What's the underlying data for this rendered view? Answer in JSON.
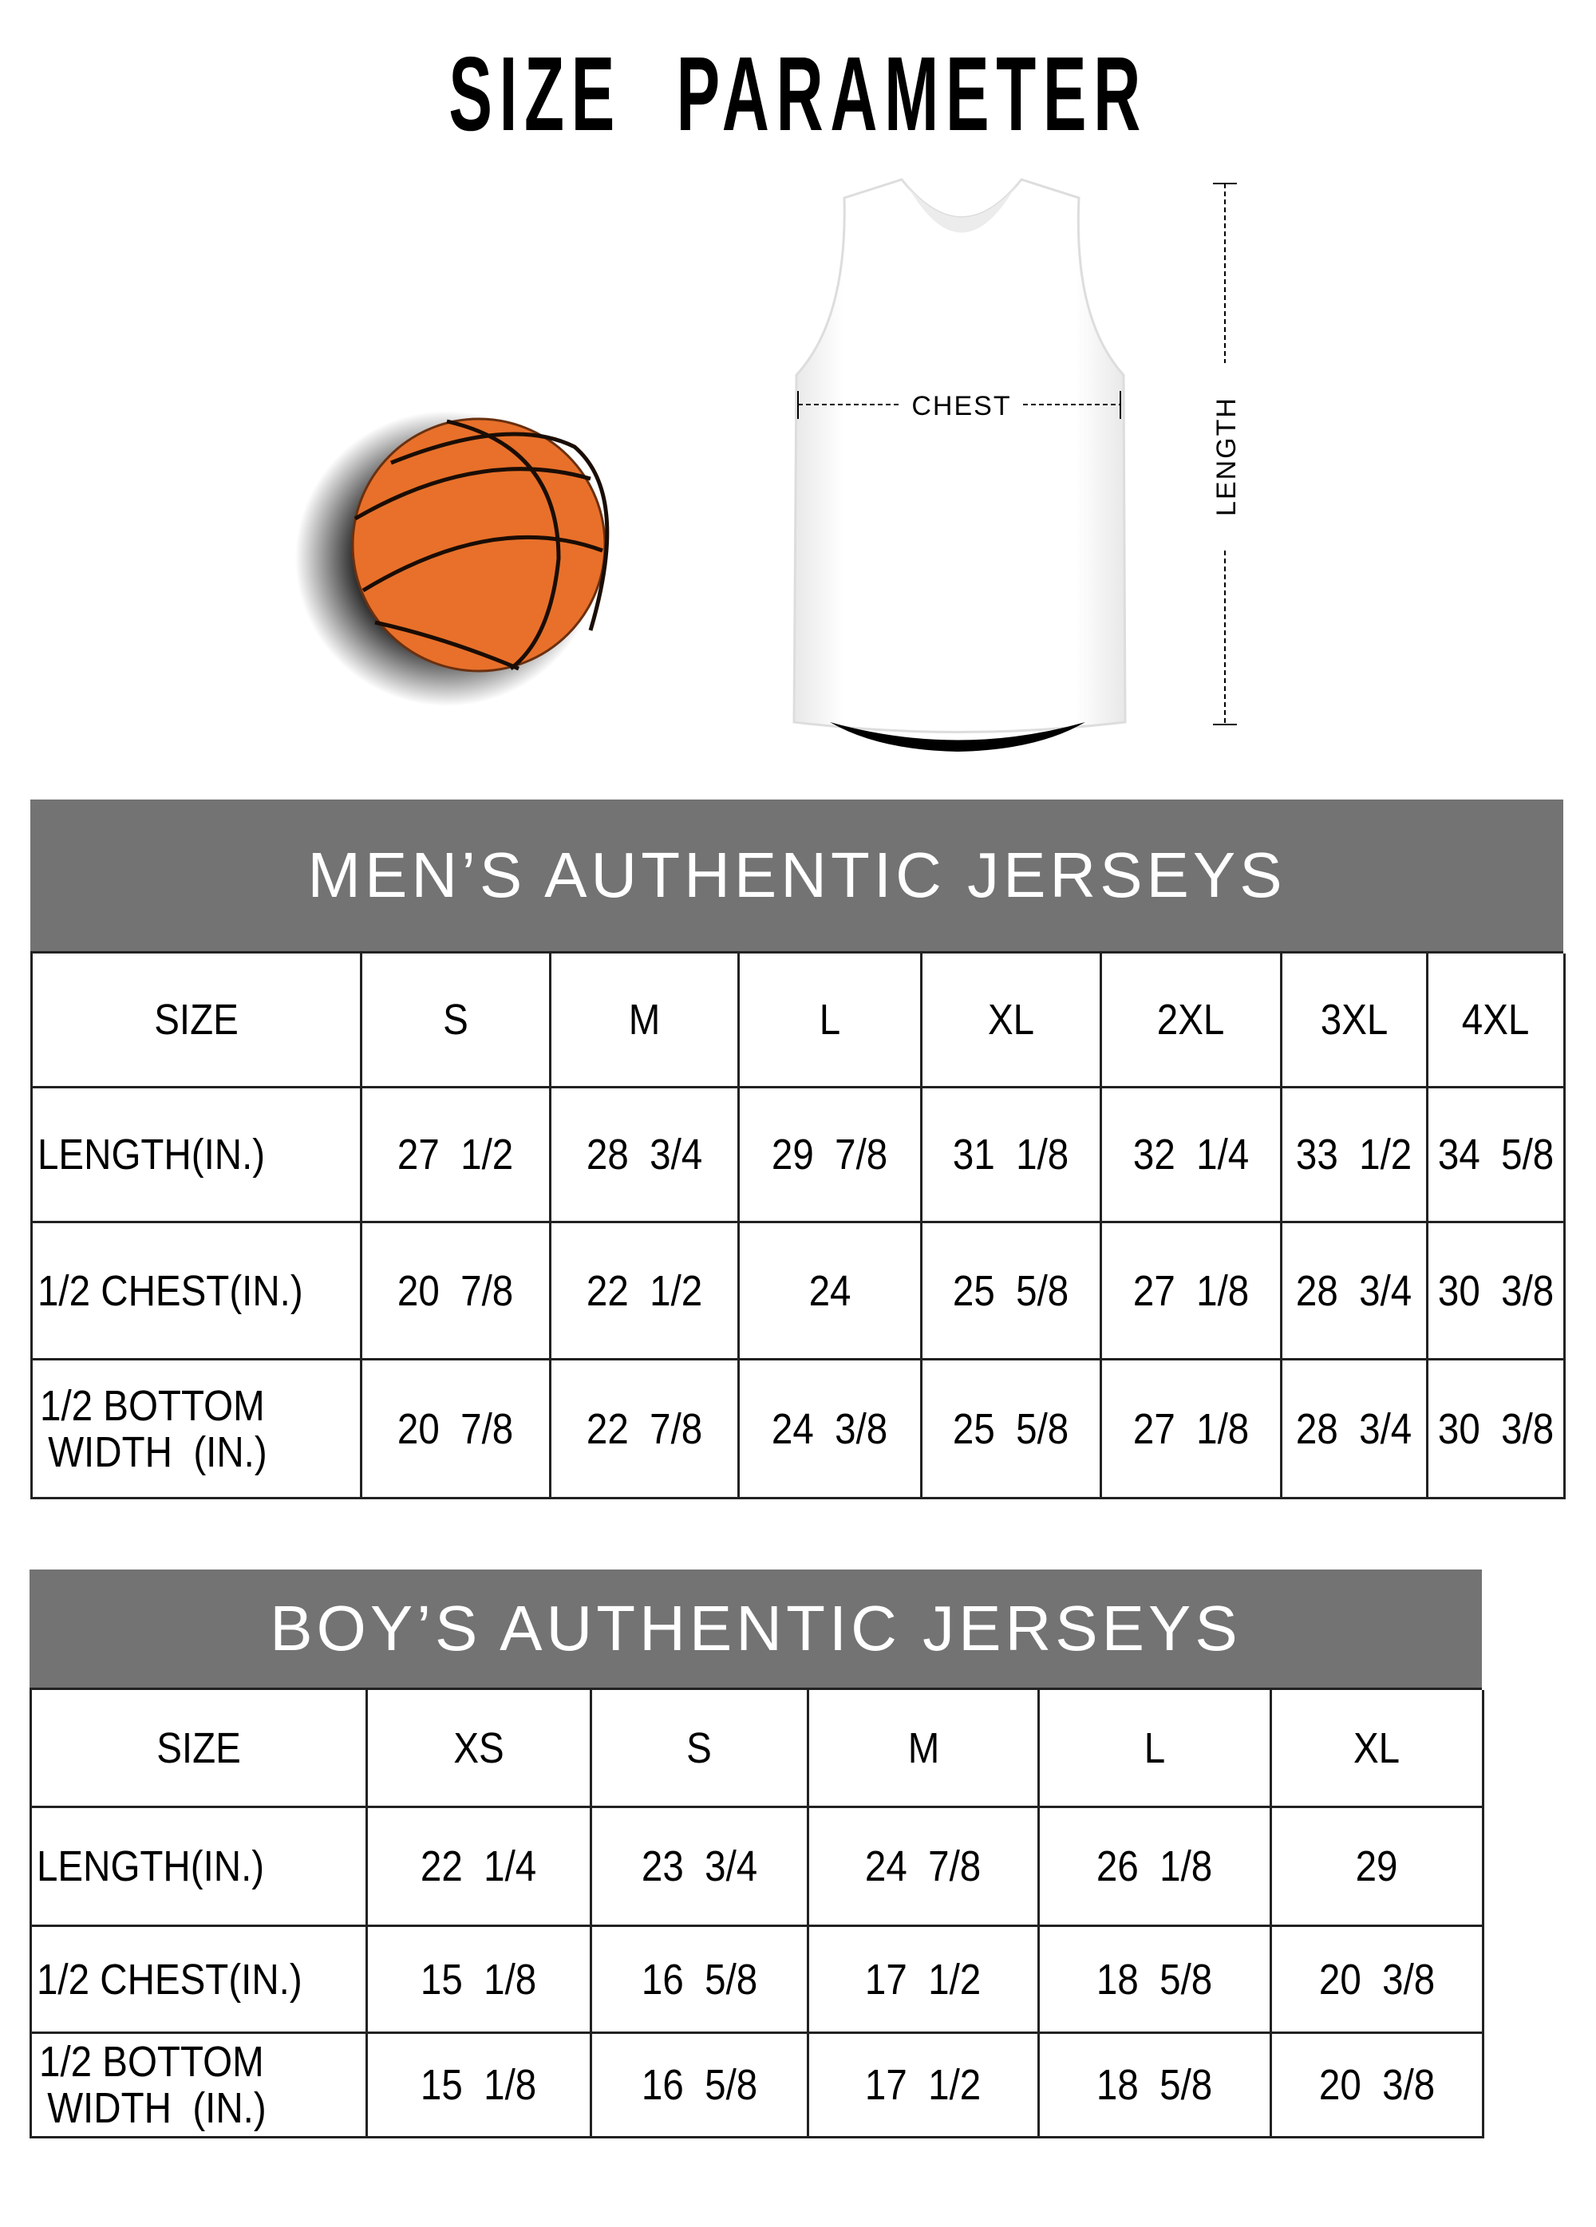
{
  "title": "SIZE  PARAMETER",
  "illustration": {
    "chest_label": "CHEST",
    "length_label": "LENGTH",
    "ball_color": "#e8702a",
    "band_color": "#737373"
  },
  "mens_table": {
    "title": "MEN’S AUTHENTIC JERSEYS",
    "columns": [
      "SIZE",
      "S",
      "M",
      "L",
      "XL",
      "2XL",
      "3XL",
      "4XL"
    ],
    "rows": [
      [
        "LENGTH(IN.)",
        "27  1/2",
        "28  3/4",
        "29  7/8",
        "31  1/8",
        "32  1/4",
        "33  1/2",
        "34  5/8"
      ],
      [
        "1/2 CHEST(IN.)",
        "20  7/8",
        "22  1/2",
        "24",
        "25  5/8",
        "27  1/8",
        "28  3/4",
        "30  3/8"
      ],
      [
        "1/2 BOTTOM\n WIDTH  (IN.)",
        "20  7/8",
        "22  7/8",
        "24  3/8",
        "25  5/8",
        "27  1/8",
        "28  3/4",
        "30  3/8"
      ]
    ]
  },
  "boys_table": {
    "title": "BOY’S AUTHENTIC JERSEYS",
    "columns": [
      "SIZE",
      "XS",
      "S",
      "M",
      "L",
      "XL"
    ],
    "rows": [
      [
        "LENGTH(IN.)",
        "22  1/4",
        "23  3/4",
        "24  7/8",
        "26  1/8",
        "29"
      ],
      [
        "1/2 CHEST(IN.)",
        "15  1/8",
        "16  5/8",
        "17  1/2",
        "18  5/8",
        "20  3/8"
      ],
      [
        "1/2 BOTTOM\n WIDTH  (IN.)",
        "15  1/8",
        "16  5/8",
        "17  1/2",
        "18  5/8",
        "20  3/8"
      ]
    ]
  }
}
